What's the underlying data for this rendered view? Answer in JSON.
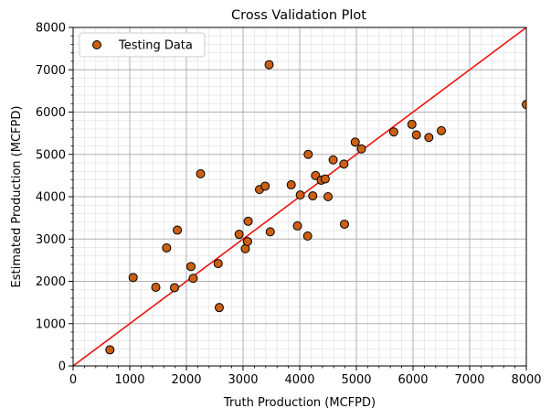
{
  "chart_data": {
    "type": "scatter",
    "title": "Cross Validation Plot",
    "xlabel": "Truth Production (MCFPD)",
    "ylabel": "Estimated Production (MCFPD)",
    "xlim": [
      0,
      8000
    ],
    "ylim": [
      0,
      8000
    ],
    "xticks": [
      0,
      1000,
      2000,
      3000,
      4000,
      5000,
      6000,
      7000,
      8000
    ],
    "yticks": [
      0,
      1000,
      2000,
      3000,
      4000,
      5000,
      6000,
      7000,
      8000
    ],
    "grid": "major and minor",
    "legend_position": "top-left",
    "colors": {
      "marker_fill": "#cc5f12",
      "marker_edge": "#000000",
      "reference_line": "#ee1111",
      "major_grid": "#b0b0b0",
      "minor_grid": "#e4e4e4"
    },
    "series": [
      {
        "name": "Testing Data",
        "points": [
          [
            650,
            380
          ],
          [
            1060,
            2090
          ],
          [
            1460,
            1860
          ],
          [
            1650,
            2790
          ],
          [
            1790,
            1850
          ],
          [
            1840,
            3210
          ],
          [
            2080,
            2350
          ],
          [
            2120,
            2070
          ],
          [
            2250,
            4540
          ],
          [
            2560,
            2420
          ],
          [
            2580,
            1380
          ],
          [
            2930,
            3110
          ],
          [
            3040,
            2770
          ],
          [
            3080,
            2940
          ],
          [
            3090,
            3420
          ],
          [
            3290,
            4170
          ],
          [
            3390,
            4250
          ],
          [
            3460,
            7120
          ],
          [
            3480,
            3170
          ],
          [
            3850,
            4280
          ],
          [
            3960,
            3310
          ],
          [
            4010,
            4040
          ],
          [
            4140,
            3070
          ],
          [
            4150,
            5000
          ],
          [
            4230,
            4020
          ],
          [
            4280,
            4500
          ],
          [
            4380,
            4390
          ],
          [
            4450,
            4420
          ],
          [
            4500,
            4000
          ],
          [
            4590,
            4870
          ],
          [
            4780,
            4770
          ],
          [
            4790,
            3350
          ],
          [
            4980,
            5290
          ],
          [
            5090,
            5130
          ],
          [
            5660,
            5530
          ],
          [
            5980,
            5710
          ],
          [
            6060,
            5460
          ],
          [
            6280,
            5400
          ],
          [
            6500,
            5560
          ],
          [
            8000,
            6180
          ]
        ]
      }
    ],
    "reference_line": {
      "from": [
        0,
        0
      ],
      "to": [
        8000,
        8000
      ]
    }
  }
}
